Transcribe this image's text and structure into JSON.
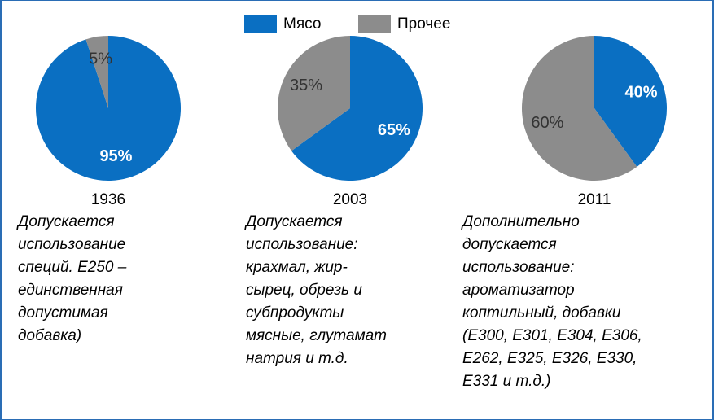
{
  "legend": [
    {
      "name": "Мясо",
      "color": "#0a6fc2"
    },
    {
      "name": "Прочее",
      "color": "#8c8c8c"
    }
  ],
  "chart_data": [
    {
      "type": "pie",
      "title": "1936",
      "values": [
        95,
        5
      ],
      "value_labels": [
        "95%",
        "5%"
      ],
      "note": [
        "Допускается",
        "использование",
        "специй. Е250 –",
        "единственная",
        "допустимая",
        "добавка)"
      ]
    },
    {
      "type": "pie",
      "title": "2003",
      "values": [
        65,
        35
      ],
      "value_labels": [
        "65%",
        "35%"
      ],
      "note": [
        "Допускается",
        "использование:",
        "крахмал, жир-",
        "сырец, обрезь и",
        "субпродукты",
        "мясные, глутамат",
        "натрия и т.д."
      ]
    },
    {
      "type": "pie",
      "title": "2011",
      "values": [
        40,
        60
      ],
      "value_labels": [
        "40%",
        "60%"
      ],
      "note": [
        "Дополнительно",
        "допускается",
        "использование:",
        "ароматизатор",
        "коптильный, добавки",
        "(Е300, Е301, Е304, Е306,",
        "Е262, Е325, Е326, Е330,",
        "Е331 и т.д.)"
      ]
    }
  ]
}
